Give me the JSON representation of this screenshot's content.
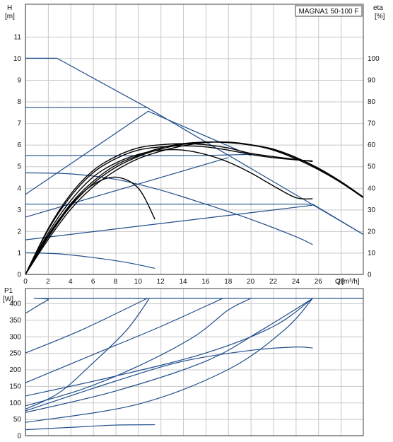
{
  "chart_data": [
    {
      "type": "line",
      "title": "MAGNA1 50-100 F",
      "ylabel": "H",
      "ylabel_unit": "[m]",
      "y2label": "eta",
      "y2label_unit": "[%]",
      "xlabel": "Q",
      "xlabel_unit": "[m³/h]",
      "xlim": [
        0,
        30
      ],
      "ylim": [
        0,
        12.5
      ],
      "y2lim": [
        0,
        125
      ],
      "x_ticks": [
        0,
        2,
        4,
        6,
        8,
        10,
        12,
        14,
        16,
        18,
        20,
        22,
        24,
        26,
        28
      ],
      "y_ticks": [
        0,
        1,
        2,
        3,
        4,
        5,
        6,
        7,
        8,
        9,
        10,
        11
      ],
      "y2_ticks": [
        0,
        10,
        20,
        30,
        40,
        50,
        60,
        70,
        80,
        90,
        100
      ],
      "grid": true,
      "colors": {
        "blue": "#1f4e8c",
        "black": "#000000"
      },
      "series": [
        {
          "color": "#1f4e8c",
          "points": [
            [
              0,
              10
            ],
            [
              2.8,
              10
            ],
            [
              10.8,
              7.72
            ],
            [
              30,
              1.85
            ]
          ]
        },
        {
          "color": "#1f4e8c",
          "points": [
            [
              0,
              7.72
            ],
            [
              10.8,
              7.72
            ]
          ]
        },
        {
          "color": "#1f4e8c",
          "points": [
            [
              0,
              5.5
            ],
            [
              15.5,
              5.5
            ],
            [
              20,
              5.55
            ]
          ]
        },
        {
          "color": "#1f4e8c",
          "points": [
            [
              0,
              3.25
            ],
            [
              25.5,
              3.25
            ],
            [
              30,
              1.85
            ]
          ]
        },
        {
          "color": "#1f4e8c",
          "points": [
            [
              0,
              3.7
            ],
            [
              10.9,
              7.55
            ],
            [
              20,
              5.5
            ]
          ]
        },
        {
          "color": "#1f4e8c",
          "points": [
            [
              0,
              2.65
            ],
            [
              18,
              5.4
            ]
          ]
        },
        {
          "color": "#1f4e8c",
          "points": [
            [
              0,
              1.6
            ],
            [
              25.5,
              3.2
            ]
          ]
        },
        {
          "color": "#1f4e8c",
          "points": [
            [
              0,
              4.7
            ],
            [
              4,
              4.65
            ],
            [
              8,
              4.4
            ],
            [
              12,
              3.9
            ],
            [
              16,
              3.25
            ],
            [
              20,
              2.55
            ],
            [
              24,
              1.75
            ],
            [
              25.5,
              1.38
            ]
          ]
        },
        {
          "color": "#1f4e8c",
          "points": [
            [
              0,
              1
            ],
            [
              3,
              0.95
            ],
            [
              6,
              0.78
            ],
            [
              9,
              0.55
            ],
            [
              11.5,
              0.28
            ]
          ]
        },
        {
          "color": "#000000",
          "points": [
            [
              0,
              0
            ],
            [
              2,
              1.8
            ],
            [
              4,
              3.2
            ],
            [
              6,
              4.15
            ],
            [
              8,
              4.5
            ],
            [
              10,
              4.0
            ],
            [
              11.5,
              2.55
            ]
          ]
        },
        {
          "color": "#000000",
          "points": [
            [
              0,
              0
            ],
            [
              2,
              1.9
            ],
            [
              4,
              3.4
            ],
            [
              6,
              4.5
            ],
            [
              8,
              5.15
            ],
            [
              10,
              5.55
            ],
            [
              12,
              5.75
            ],
            [
              14,
              5.75
            ],
            [
              16,
              5.55
            ],
            [
              18,
              5.2
            ],
            [
              20,
              4.7
            ],
            [
              22,
              4.1
            ],
            [
              24,
              3.55
            ],
            [
              25.5,
              3.5
            ]
          ]
        },
        {
          "color": "#000000",
          "points": [
            [
              0,
              0
            ],
            [
              2,
              2.05
            ],
            [
              4,
              3.6
            ],
            [
              6,
              4.7
            ],
            [
              8,
              5.35
            ],
            [
              10,
              5.75
            ],
            [
              12,
              5.9
            ],
            [
              14,
              5.95
            ],
            [
              16,
              5.9
            ],
            [
              18,
              5.75
            ],
            [
              20,
              5.55
            ],
            [
              22,
              5.4
            ],
            [
              24,
              5.3
            ],
            [
              25.5,
              5.25
            ]
          ]
        },
        {
          "color": "#000000",
          "points": [
            [
              0,
              0
            ],
            [
              2,
              2.1
            ],
            [
              4,
              3.7
            ],
            [
              6,
              4.8
            ],
            [
              8,
              5.45
            ],
            [
              10,
              5.85
            ],
            [
              12,
              6.0
            ],
            [
              14,
              6.05
            ],
            [
              16,
              6.0
            ],
            [
              18,
              5.85
            ],
            [
              20,
              5.6
            ],
            [
              22,
              5.45
            ],
            [
              24,
              5.32
            ],
            [
              25.5,
              5.22
            ]
          ]
        },
        {
          "color": "#000000",
          "points": [
            [
              0,
              0
            ],
            [
              2,
              1.6
            ],
            [
              4,
              3.0
            ],
            [
              6,
              4.05
            ],
            [
              8,
              4.8
            ],
            [
              10,
              5.35
            ],
            [
              12,
              5.7
            ],
            [
              14,
              5.95
            ],
            [
              16,
              6.1
            ],
            [
              18,
              6.12
            ],
            [
              20,
              6.0
            ],
            [
              22,
              5.75
            ],
            [
              24,
              5.35
            ],
            [
              26,
              4.85
            ],
            [
              28,
              4.25
            ],
            [
              30,
              3.55
            ]
          ]
        },
        {
          "color": "#000000",
          "points": [
            [
              0,
              0
            ],
            [
              2,
              1.7
            ],
            [
              4,
              3.15
            ],
            [
              6,
              4.2
            ],
            [
              8,
              4.95
            ],
            [
              10,
              5.45
            ],
            [
              12,
              5.8
            ],
            [
              14,
              6.02
            ],
            [
              16,
              6.12
            ],
            [
              18,
              6.1
            ],
            [
              20,
              6.0
            ],
            [
              22,
              5.8
            ],
            [
              24,
              5.42
            ],
            [
              26,
              4.92
            ],
            [
              28,
              4.3
            ],
            [
              30,
              3.58
            ]
          ]
        },
        {
          "color": "#000000",
          "points": [
            [
              0,
              0
            ],
            [
              2,
              1.75
            ],
            [
              4,
              3.25
            ],
            [
              6,
              4.3
            ],
            [
              8,
              5.05
            ],
            [
              10,
              5.5
            ],
            [
              12,
              5.85
            ],
            [
              14,
              6.05
            ],
            [
              16,
              6.12
            ],
            [
              18,
              6.1
            ],
            [
              20,
              5.98
            ],
            [
              22,
              5.78
            ],
            [
              24,
              5.4
            ],
            [
              26,
              4.9
            ],
            [
              28,
              4.28
            ],
            [
              30,
              3.55
            ]
          ]
        }
      ]
    },
    {
      "type": "line",
      "ylabel": "P1",
      "ylabel_unit": "[W]",
      "xlim": [
        0,
        30
      ],
      "ylim": [
        0,
        445
      ],
      "y_ticks": [
        0,
        50,
        100,
        150,
        200,
        250,
        300,
        350,
        400
      ],
      "grid": true,
      "colors": {
        "blue": "#1f4e8c"
      },
      "series": [
        {
          "color": "#1f4e8c",
          "points": [
            [
              0,
              370
            ],
            [
              2,
              410
            ],
            [
              3,
              415
            ],
            [
              30,
              415
            ]
          ]
        },
        {
          "color": "#1f4e8c",
          "points": [
            [
              0,
              250
            ],
            [
              5,
              320
            ],
            [
              10.8,
              415
            ]
          ]
        },
        {
          "color": "#1f4e8c",
          "points": [
            [
              0,
              80
            ],
            [
              3,
              130
            ],
            [
              6,
              220
            ],
            [
              9,
              320
            ],
            [
              11,
              415
            ]
          ]
        },
        {
          "color": "#1f4e8c",
          "points": [
            [
              0,
              160
            ],
            [
              6,
              245
            ],
            [
              12,
              330
            ],
            [
              17.5,
              415
            ]
          ]
        },
        {
          "color": "#1f4e8c",
          "points": [
            [
              0,
              90
            ],
            [
              5,
              140
            ],
            [
              10,
              210
            ],
            [
              15,
              300
            ],
            [
              18,
              380
            ],
            [
              20,
              415
            ]
          ]
        },
        {
          "color": "#1f4e8c",
          "points": [
            [
              0,
              120
            ],
            [
              8,
              180
            ],
            [
              16,
              250
            ],
            [
              22,
              330
            ],
            [
              25.5,
              415
            ]
          ]
        },
        {
          "color": "#1f4e8c",
          "points": [
            [
              0,
              70
            ],
            [
              8,
              135
            ],
            [
              16,
              225
            ],
            [
              21,
              320
            ],
            [
              25.5,
              415
            ]
          ]
        },
        {
          "color": "#1f4e8c",
          "points": [
            [
              0,
              40
            ],
            [
              10,
              95
            ],
            [
              18,
              200
            ],
            [
              23,
              320
            ],
            [
              25.5,
              415
            ]
          ]
        },
        {
          "color": "#1f4e8c",
          "points": [
            [
              0,
              75
            ],
            [
              8,
              165
            ],
            [
              14,
              225
            ],
            [
              20,
              258
            ],
            [
              24,
              268
            ],
            [
              25.5,
              265
            ]
          ]
        },
        {
          "color": "#1f4e8c",
          "points": [
            [
              0,
              18
            ],
            [
              4,
              25
            ],
            [
              8,
              32
            ],
            [
              11.5,
              33
            ]
          ]
        }
      ]
    }
  ]
}
